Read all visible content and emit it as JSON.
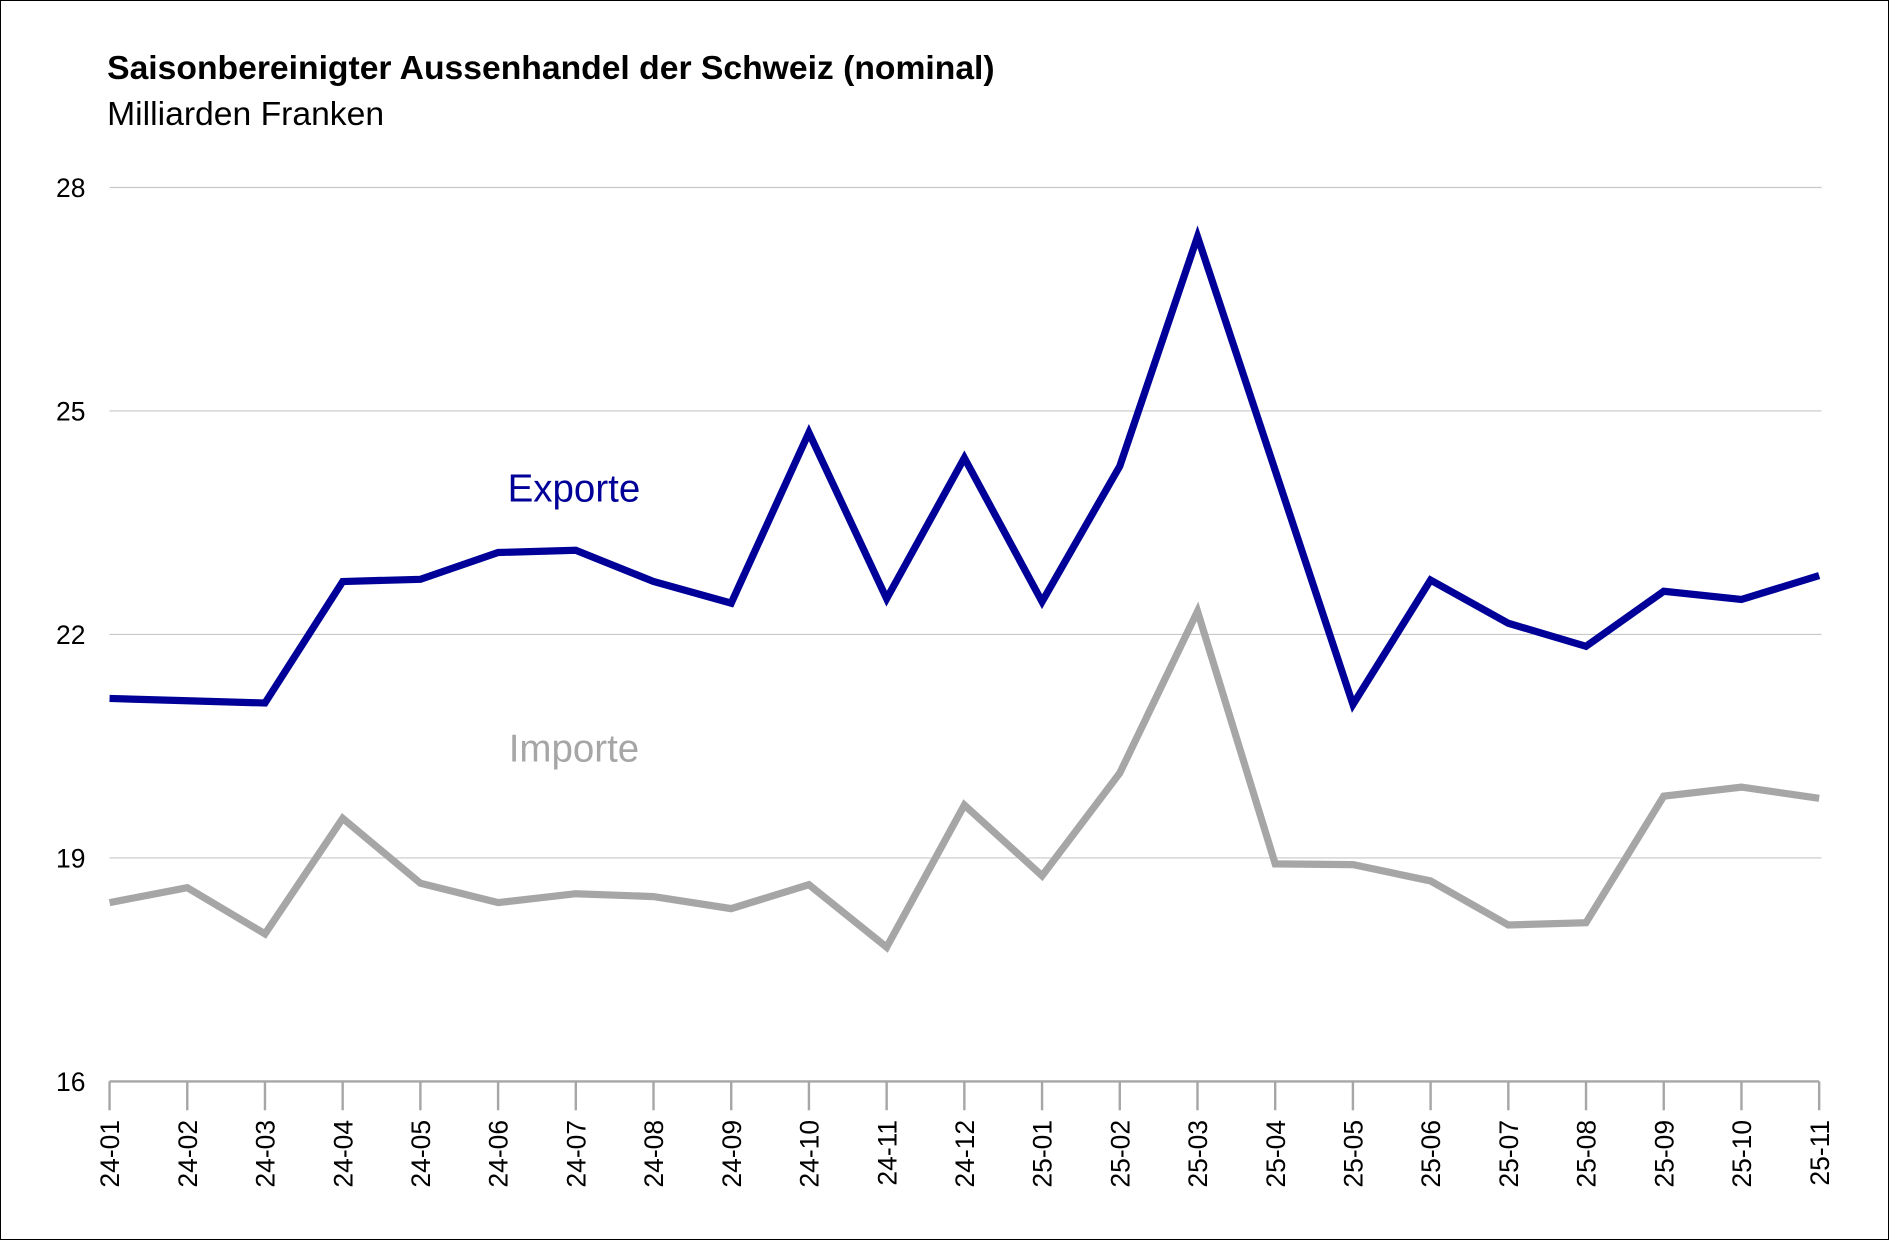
{
  "chart_data": {
    "type": "line",
    "title": "Saisonbereinigter Aussenhandel der Schweiz (nominal)",
    "subtitle": "Milliarden Franken",
    "xlabel": "",
    "ylabel": "",
    "ylim": [
      16,
      28
    ],
    "yticks": [
      "16",
      "19",
      "22",
      "25",
      "28"
    ],
    "ytick_values": [
      16,
      19,
      22,
      25,
      28
    ],
    "grid": true,
    "categories": [
      "24-01",
      "24-02",
      "24-03",
      "24-04",
      "24-05",
      "24-06",
      "24-07",
      "24-08",
      "24-09",
      "24-10",
      "24-11",
      "24-12",
      "25-01",
      "25-02",
      "25-03",
      "25-04",
      "25-05",
      "25-06",
      "25-07",
      "25-08",
      "25-09",
      "25-10",
      "25-11"
    ],
    "series": [
      {
        "name": "Exporte",
        "color": "#000099",
        "values": [
          21.14,
          21.11,
          21.08,
          22.71,
          22.74,
          23.1,
          23.13,
          22.71,
          22.42,
          24.71,
          22.48,
          24.37,
          22.44,
          24.26,
          27.34,
          24.2,
          21.06,
          22.73,
          22.15,
          21.84,
          22.58,
          22.47,
          22.79
        ]
      },
      {
        "name": "Importe",
        "color": "#A6A6A6",
        "values": [
          18.4,
          18.6,
          17.98,
          19.53,
          18.66,
          18.4,
          18.52,
          18.48,
          18.32,
          18.64,
          17.8,
          19.71,
          18.76,
          20.14,
          22.31,
          18.92,
          18.91,
          18.69,
          18.1,
          18.13,
          19.83,
          19.95,
          19.8
        ]
      }
    ]
  }
}
